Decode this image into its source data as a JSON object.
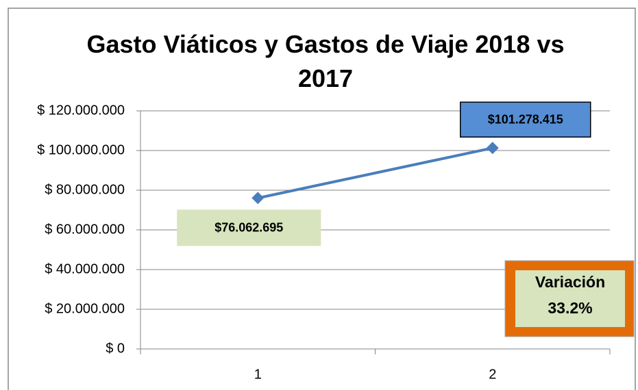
{
  "chart_data": {
    "type": "line",
    "title": "Gasto Viáticos y Gastos de Viaje 2018 vs 2017",
    "categories": [
      "1",
      "2"
    ],
    "series": [
      {
        "name": "Gasto",
        "color": "#4a7ebb",
        "values": [
          76062695,
          101278415
        ],
        "value_labels": [
          "$76.062.695",
          "$101.278.415"
        ]
      }
    ],
    "ylim": [
      0,
      120000000
    ],
    "yticks": [
      {
        "value": 0,
        "label": "$ 0"
      },
      {
        "value": 20000000,
        "label": "$ 20.000.000"
      },
      {
        "value": 40000000,
        "label": "$ 40.000.000"
      },
      {
        "value": 60000000,
        "label": "$ 60.000.000"
      },
      {
        "value": 80000000,
        "label": "$ 80.000.000"
      },
      {
        "value": 100000000,
        "label": "$ 100.000.000"
      },
      {
        "value": 120000000,
        "label": "$ 120.000.000"
      }
    ],
    "grid": true,
    "annotation": [
      "Variación",
      "33.2%"
    ]
  }
}
